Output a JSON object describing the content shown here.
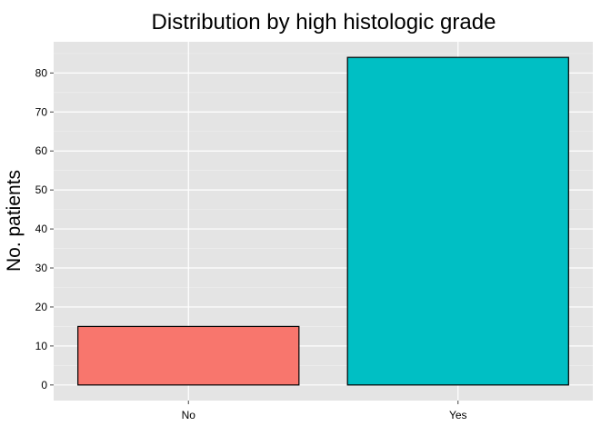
{
  "chart_data": {
    "type": "bar",
    "title": "Distribution by high histologic grade",
    "xlabel": "",
    "ylabel": "No. patients",
    "categories": [
      "No",
      "Yes"
    ],
    "values": [
      15,
      84
    ],
    "ylim": [
      -4,
      88
    ],
    "yticks": [
      0,
      10,
      20,
      30,
      40,
      50,
      60,
      70,
      80
    ],
    "yticks_minor": [
      5,
      15,
      25,
      35,
      45,
      55,
      65,
      75,
      85
    ],
    "grid": true,
    "legend": "none",
    "colors": {
      "panel_background": "#e4e4e4",
      "grid_major": "#ffffff",
      "grid_minor": "#f0f0f0",
      "bar_outline": "#000000",
      "bars": [
        "#f8766d",
        "#00bfc4"
      ]
    }
  }
}
